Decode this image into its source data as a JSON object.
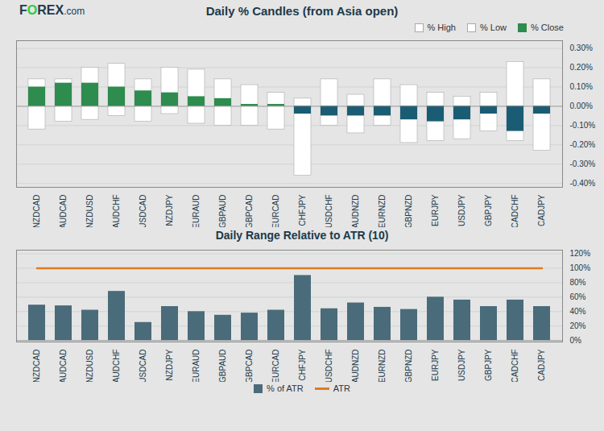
{
  "chart_data": [
    {
      "type": "bar",
      "title": "Daily % Candles (from Asia open)",
      "annotations": [
        {
          "text": "F",
          "color": "#1b3a4b"
        },
        {
          "text": "O",
          "color": "#2ecc40"
        },
        {
          "text": "REX",
          "color": "#1b3a4b"
        },
        {
          "text": ".com",
          "color": "#1b3a4b"
        }
      ],
      "categories": [
        "NZDCAD",
        "AUDCAD",
        "NZDUSD",
        "AUDCHF",
        "USDCAD",
        "NZDJPY",
        "EURAUD",
        "GBPAUD",
        "GBPCAD",
        "EURCAD",
        "CHFJPY",
        "USDCHF",
        "AUDNZD",
        "EURNZD",
        "GBPNZD",
        "EURJPY",
        "USDJPY",
        "GBPJPY",
        "CADCHF",
        "CADJPY"
      ],
      "series": [
        {
          "name": "% High",
          "color": "#ffffff",
          "values": [
            0.14,
            0.14,
            0.2,
            0.22,
            0.14,
            0.2,
            0.19,
            0.14,
            0.11,
            0.07,
            0.04,
            0.14,
            0.06,
            0.14,
            0.11,
            0.07,
            0.05,
            0.07,
            0.23,
            0.14
          ]
        },
        {
          "name": "% Low",
          "color": "#ffffff",
          "values": [
            -0.12,
            -0.08,
            -0.07,
            -0.05,
            -0.08,
            -0.04,
            -0.09,
            -0.1,
            -0.1,
            -0.12,
            -0.36,
            -0.1,
            -0.14,
            -0.1,
            -0.19,
            -0.18,
            -0.17,
            -0.13,
            -0.18,
            -0.23
          ]
        },
        {
          "name": "% Close",
          "color": "#2d8c4e",
          "colors": [
            "#2d8c4e",
            "#2d8c4e",
            "#2d8c4e",
            "#2d8c4e",
            "#2d8c4e",
            "#2d8c4e",
            "#2d8c4e",
            "#2d8c4e",
            "#2d8c4e",
            "#2d8c4e",
            "#1a5c73",
            "#1a5c73",
            "#1a5c73",
            "#1a5c73",
            "#1a5c73",
            "#1a5c73",
            "#1a5c73",
            "#1a5c73",
            "#1a5c73",
            "#1a5c73"
          ],
          "values": [
            0.1,
            0.12,
            0.12,
            0.1,
            0.08,
            0.07,
            0.05,
            0.04,
            0.01,
            0.01,
            -0.04,
            -0.05,
            -0.05,
            -0.05,
            -0.07,
            -0.08,
            -0.07,
            -0.04,
            -0.13,
            -0.04
          ]
        }
      ],
      "ylim": [
        -0.42,
        0.34
      ],
      "yticks": [
        {
          "value": -0.4,
          "label": "-0.40%"
        },
        {
          "value": -0.3,
          "label": "-0.30%"
        },
        {
          "value": -0.2,
          "label": "-0.20%"
        },
        {
          "value": -0.1,
          "label": "-0.10%"
        },
        {
          "value": 0.0,
          "label": "0.00%"
        },
        {
          "value": 0.1,
          "label": "0.10%"
        },
        {
          "value": 0.2,
          "label": "0.20%"
        },
        {
          "value": 0.3,
          "label": "0.30%"
        }
      ],
      "grid": true,
      "legend": "upper right"
    },
    {
      "type": "bar",
      "title": "Daily Range Relative to ATR (10)",
      "categories": [
        "NZDCAD",
        "AUDCAD",
        "NZDUSD",
        "AUDCHF",
        "USDCAD",
        "NZDJPY",
        "EURAUD",
        "GBPAUD",
        "GBPCAD",
        "EURCAD",
        "CHFJPY",
        "USDCHF",
        "AUDNZD",
        "EURNZD",
        "GBPNZD",
        "EURJPY",
        "USDJPY",
        "GBPJPY",
        "CADCHF",
        "CADJPY"
      ],
      "series": [
        {
          "name": "% of ATR",
          "type": "bar",
          "color": "#4a6b7a",
          "values": [
            49,
            48,
            42,
            68,
            25,
            47,
            40,
            35,
            38,
            42,
            90,
            44,
            52,
            46,
            43,
            60,
            56,
            47,
            56,
            47
          ]
        },
        {
          "name": "ATR",
          "type": "line",
          "color": "#e07b20",
          "values": [
            100,
            100,
            100,
            100,
            100,
            100,
            100,
            100,
            100,
            100,
            100,
            100,
            100,
            100,
            100,
            100,
            100,
            100,
            100,
            100
          ]
        }
      ],
      "ylim": [
        -2,
        125
      ],
      "yticks": [
        {
          "value": 0,
          "label": "0%"
        },
        {
          "value": 20,
          "label": "20%"
        },
        {
          "value": 40,
          "label": "40%"
        },
        {
          "value": 60,
          "label": "60%"
        },
        {
          "value": 80,
          "label": "80%"
        },
        {
          "value": 100,
          "label": "100%"
        },
        {
          "value": 120,
          "label": "120%"
        }
      ],
      "grid": true,
      "legend": "bottom"
    }
  ]
}
